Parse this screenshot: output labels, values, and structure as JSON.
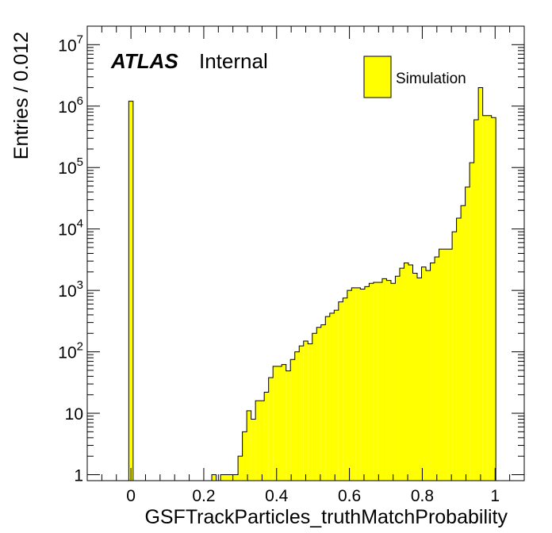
{
  "chart_data": {
    "type": "bar",
    "xlabel": "GSFTrackParticles_truthMatchProbability",
    "ylabel": "Entries / 0.012",
    "xlim": [
      -0.12,
      1.08
    ],
    "ylim": [
      0.8,
      20000000
    ],
    "yscale": "log",
    "grid": false,
    "legend_position": "top-right",
    "fill_color": "#ffff00",
    "edge_color": "#000000",
    "bin_width": 0.012,
    "x_ticks": [
      "0",
      "0.2",
      "0.4",
      "0.6",
      "0.8",
      "1"
    ],
    "y_ticks": [
      {
        "base": "1",
        "exp": ""
      },
      {
        "base": "10",
        "exp": ""
      },
      {
        "base": "10",
        "exp": "2"
      },
      {
        "base": "10",
        "exp": "3"
      },
      {
        "base": "10",
        "exp": "4"
      },
      {
        "base": "10",
        "exp": "5"
      },
      {
        "base": "10",
        "exp": "6"
      },
      {
        "base": "10",
        "exp": "7"
      }
    ],
    "series": [
      {
        "name": "Simulation",
        "bin_edges": [
          -0.006,
          0.006,
          0.018,
          0.03,
          0.042,
          0.054,
          0.066,
          0.078,
          0.09,
          0.102,
          0.114,
          0.126,
          0.138,
          0.15,
          0.162,
          0.174,
          0.186,
          0.198,
          0.21,
          0.222,
          0.234,
          0.246,
          0.258,
          0.27,
          0.282,
          0.294,
          0.306,
          0.318,
          0.33,
          0.342,
          0.354,
          0.366,
          0.378,
          0.39,
          0.402,
          0.414,
          0.426,
          0.438,
          0.45,
          0.462,
          0.474,
          0.486,
          0.498,
          0.51,
          0.522,
          0.534,
          0.546,
          0.558,
          0.57,
          0.582,
          0.594,
          0.606,
          0.618,
          0.63,
          0.642,
          0.654,
          0.666,
          0.678,
          0.69,
          0.702,
          0.714,
          0.726,
          0.738,
          0.75,
          0.762,
          0.774,
          0.786,
          0.798,
          0.81,
          0.822,
          0.834,
          0.846,
          0.858,
          0.87,
          0.882,
          0.894,
          0.906,
          0.918,
          0.93,
          0.942,
          0.954,
          0.966,
          0.978,
          0.99,
          1.002
        ],
        "values": [
          1200000,
          0,
          0,
          0,
          0,
          0,
          0,
          0,
          0,
          0,
          0,
          0,
          0,
          0,
          0,
          0,
          0,
          0,
          0,
          1,
          0,
          1,
          1,
          1,
          1,
          2,
          5,
          11,
          8,
          16,
          16,
          22,
          38,
          58,
          58,
          62,
          49,
          75,
          100,
          125,
          150,
          135,
          200,
          250,
          275,
          375,
          425,
          475,
          650,
          750,
          1000,
          1100,
          1100,
          1050,
          1150,
          1300,
          1350,
          1350,
          1550,
          1450,
          1300,
          1700,
          2300,
          2800,
          2600,
          1900,
          1600,
          2400,
          2100,
          2800,
          3500,
          4700,
          4700,
          4700,
          9000,
          15000,
          24000,
          48000,
          120000,
          600000,
          2000000,
          700000,
          700000,
          650000
        ]
      }
    ],
    "annotations": {
      "atlas": "ATLAS",
      "internal": "Internal"
    }
  }
}
